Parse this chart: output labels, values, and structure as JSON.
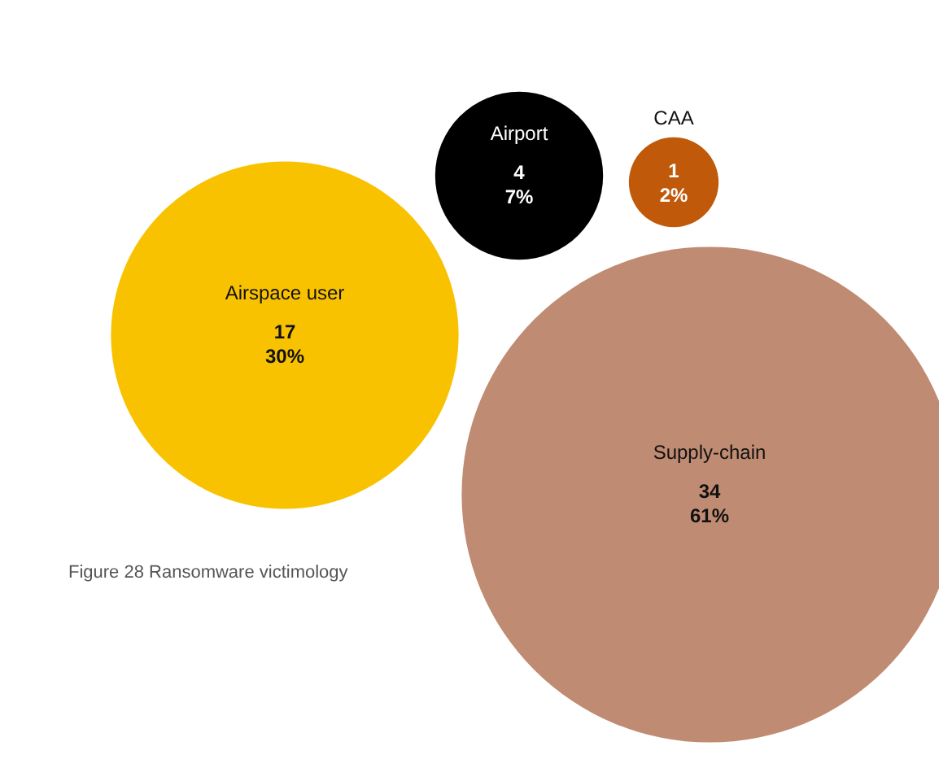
{
  "chart_data": {
    "type": "other",
    "categories": [
      "Airspace user",
      "Airport",
      "CAA",
      "Supply-chain"
    ],
    "values": [
      30,
      7,
      2,
      61
    ],
    "value_labels": [
      "17\n30%",
      "4\n7%",
      "1\n2%",
      "34\n61%"
    ],
    "colors": [
      "#f9c200",
      "#000000",
      "#c05a0a",
      "#bf8b72"
    ],
    "annotations": [
      "Figure 28 Ransomware victimology"
    ]
  }
}
